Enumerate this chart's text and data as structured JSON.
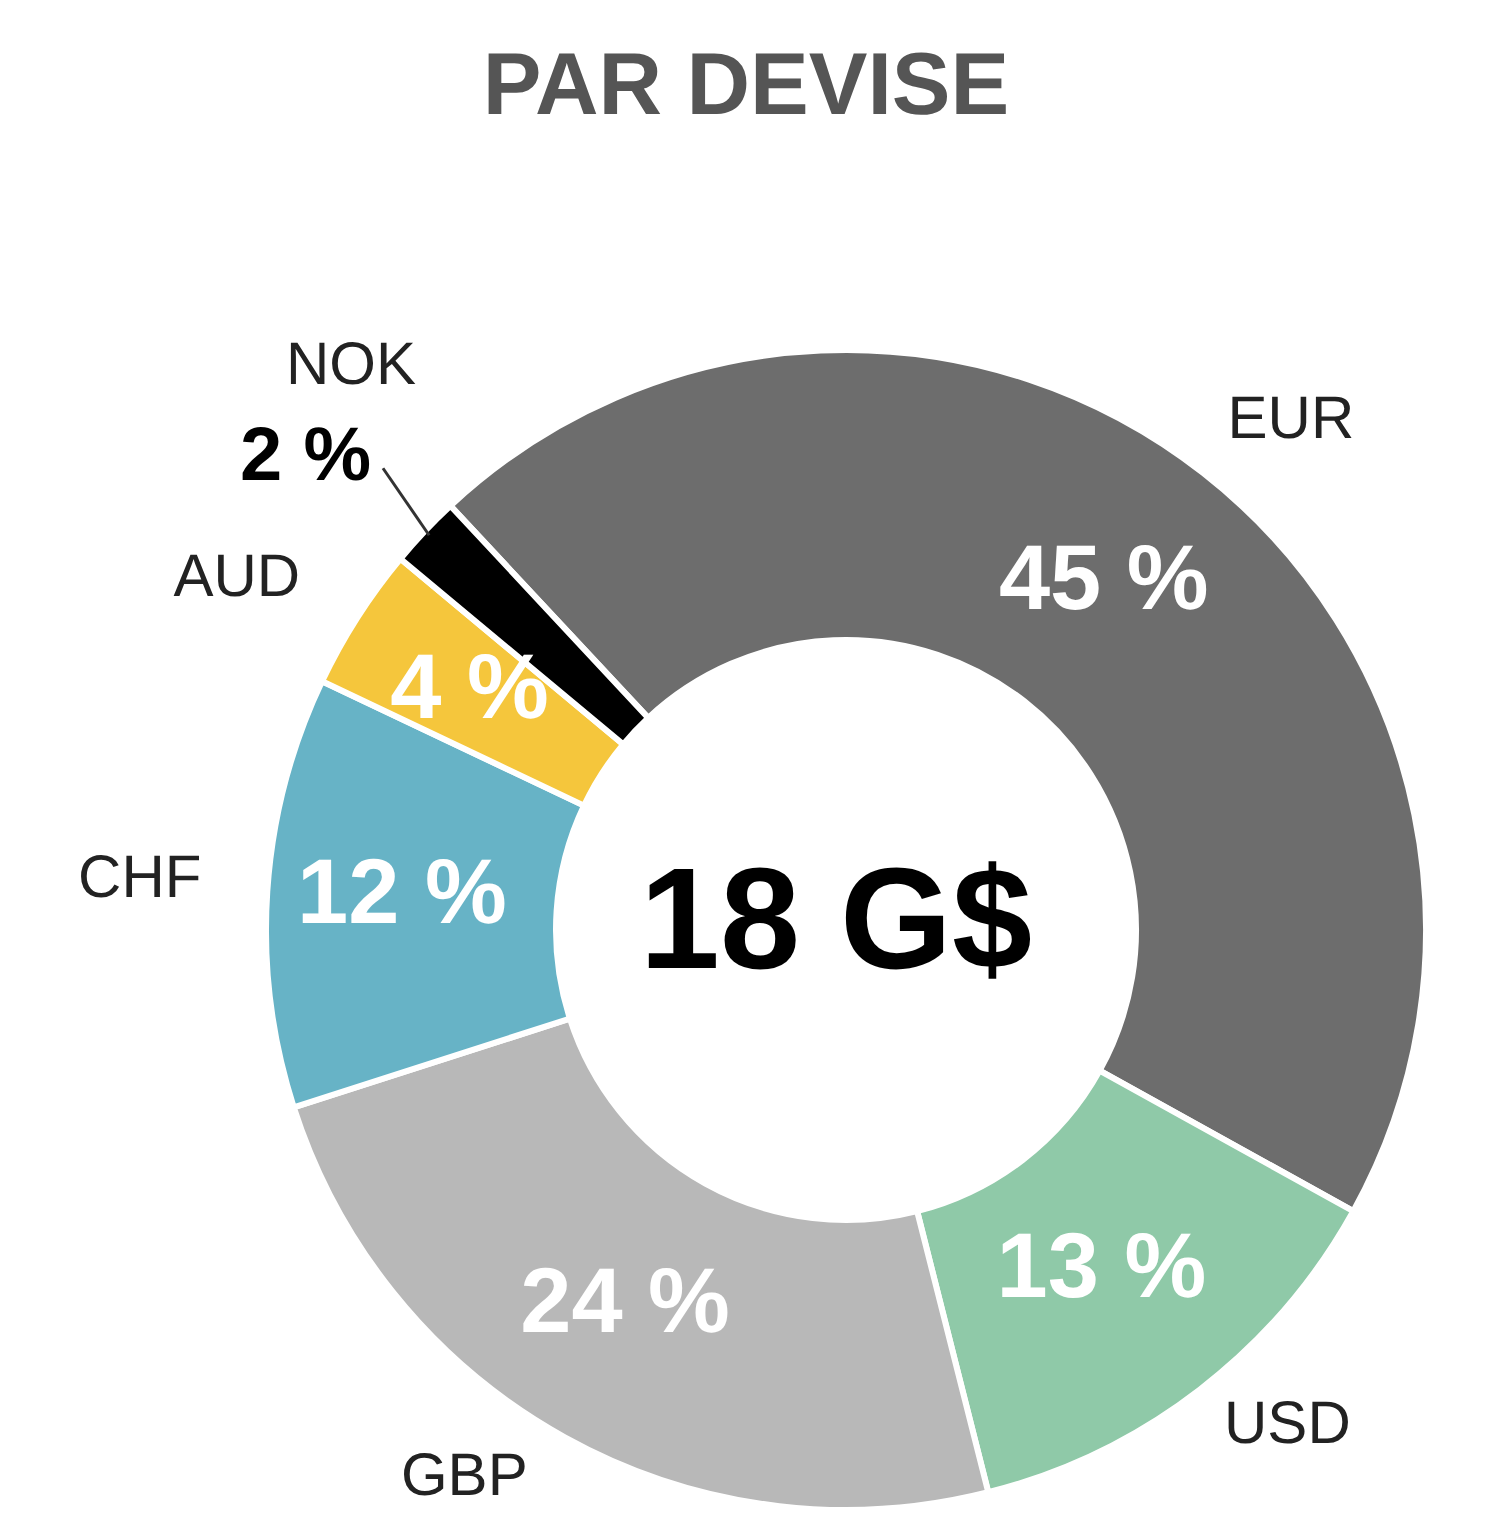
{
  "chart_data": {
    "type": "donut",
    "title": "PAR DEVISE",
    "categories": [
      "EUR",
      "USD",
      "GBP",
      "CHF",
      "AUD",
      "NOK"
    ],
    "values": [
      45,
      13,
      24,
      12,
      4,
      2
    ],
    "colors": [
      "#6d6d6d",
      "#8fc9a8",
      "#b8b8b8",
      "#67b3c6",
      "#f5c63c",
      "#000000"
    ],
    "value_labels": [
      "45 %",
      "13 %",
      "24 %",
      "12 %",
      "4 %",
      "2 %"
    ],
    "annotations": [
      "18 G$"
    ]
  }
}
